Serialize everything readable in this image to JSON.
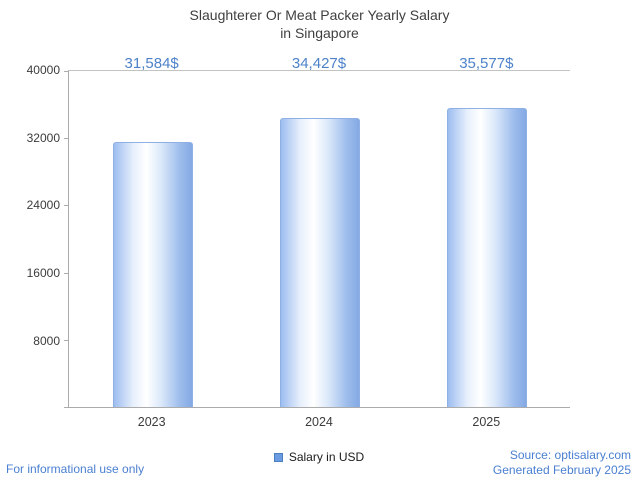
{
  "title": {
    "line1": "Slaughterer Or Meat Packer Yearly Salary",
    "line2": "in Singapore"
  },
  "chart_data": {
    "type": "bar",
    "title": "Slaughterer Or Meat Packer Yearly Salary in Singapore",
    "categories": [
      "2023",
      "2024",
      "2025"
    ],
    "series": [
      {
        "name": "Salary in USD",
        "values": [
          31584,
          34427,
          35577
        ]
      }
    ],
    "values": [
      31584,
      34427,
      35577
    ],
    "value_labels": [
      "31,584$",
      "34,427$",
      "35,577$"
    ],
    "ylabel": "",
    "xlabel": "",
    "ylim": [
      0,
      40000
    ],
    "ytick_labels": [
      "40000",
      "32000",
      "24000",
      "16000",
      "8000"
    ],
    "grid": false,
    "legend_position": "bottom",
    "bar_color": "#84a9e4",
    "value_label_color": "#4d82c9"
  },
  "legend": {
    "items": [
      {
        "label": "Salary in USD",
        "color": "#6b9be0"
      }
    ]
  },
  "footer": {
    "disclaimer": "For informational use only",
    "source": "Source: optisalary.com",
    "generated": "Generated February 2025"
  }
}
